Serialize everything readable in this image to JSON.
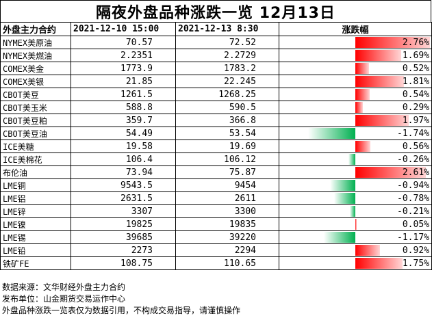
{
  "title": "隔夜外盘品种涨跌一览 12月13日",
  "headers": {
    "name": "外盘主力合约",
    "date_a": "2021-12-10 15:00",
    "date_b": "2021-12-13 8:30",
    "change": "涨跌幅"
  },
  "rows": [
    {
      "name": "NYMEX美原油",
      "a": "70.57",
      "b": "72.52",
      "pct": "2.76%",
      "value": 2.76
    },
    {
      "name": "NYMEX美燃油",
      "a": "2.2351",
      "b": "2.2729",
      "pct": "1.69%",
      "value": 1.69
    },
    {
      "name": "COMEX美金",
      "a": "1773.9",
      "b": "1783.2",
      "pct": "0.52%",
      "value": 0.52
    },
    {
      "name": "COMEX美银",
      "a": "21.85",
      "b": "22.245",
      "pct": "1.81%",
      "value": 1.81
    },
    {
      "name": "CBOT美豆",
      "a": "1261.5",
      "b": "1268.25",
      "pct": "0.54%",
      "value": 0.54
    },
    {
      "name": "CBOT美玉米",
      "a": "588.8",
      "b": "590.5",
      "pct": "0.29%",
      "value": 0.29
    },
    {
      "name": "CBOT美豆粕",
      "a": "359.7",
      "b": "366.8",
      "pct": "1.97%",
      "value": 1.97
    },
    {
      "name": "CBOT美豆油",
      "a": "54.49",
      "b": "53.54",
      "pct": "-1.74%",
      "value": -1.74
    },
    {
      "name": "ICE美糖",
      "a": "19.58",
      "b": "19.69",
      "pct": "0.56%",
      "value": 0.56
    },
    {
      "name": "ICE美棉花",
      "a": "106.4",
      "b": "106.12",
      "pct": "-0.26%",
      "value": -0.26
    },
    {
      "name": "布伦油",
      "a": "73.94",
      "b": "75.87",
      "pct": "2.61%",
      "value": 2.61
    },
    {
      "name": "LME铜",
      "a": "9543.5",
      "b": "9454",
      "pct": "-0.94%",
      "value": -0.94
    },
    {
      "name": "LME铝",
      "a": "2631.5",
      "b": "2611",
      "pct": "-0.78%",
      "value": -0.78
    },
    {
      "name": "LME锌",
      "a": "3307",
      "b": "3300",
      "pct": "-0.21%",
      "value": -0.21
    },
    {
      "name": "LME镍",
      "a": "19825",
      "b": "19835",
      "pct": "0.05%",
      "value": 0.05
    },
    {
      "name": "LME锡",
      "a": "39685",
      "b": "39220",
      "pct": "-1.17%",
      "value": -1.17
    },
    {
      "name": "LME铅",
      "a": "2273",
      "b": "2294",
      "pct": "0.92%",
      "value": 0.92
    },
    {
      "name": "铁矿FE",
      "a": "108.75",
      "b": "110.65",
      "pct": "1.75%",
      "value": 1.75
    }
  ],
  "colors": {
    "up": "#ff0000",
    "down": "#00b050"
  },
  "footer": [
    "数据来源：文华财经外盘主力合约",
    "发布单位：山金期货交易运作中心",
    "外盘品种涨跌一览表仅为数据引用，不构成交易指导，请谨慎操作"
  ]
}
